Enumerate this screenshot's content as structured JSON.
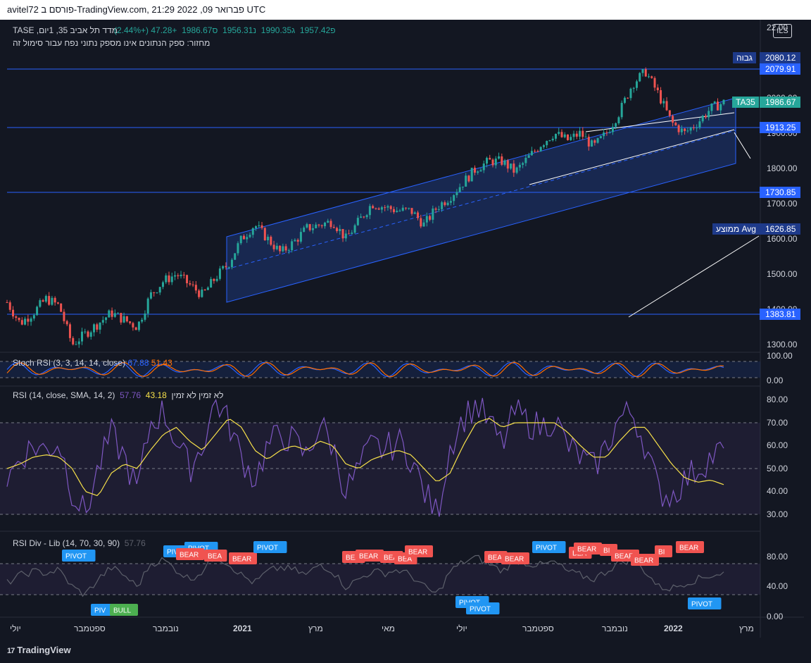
{
  "header": {
    "text": "avitel72 פורסם ב-TradingView.com, 21:29 2022 ,09 פברואר UTC"
  },
  "legend": {
    "symbol": "מדד תל אביב 35, 1יום, TASE",
    "o": "פ1957.42",
    "h": "ג1990.35",
    "l": "נ1956.31",
    "c": "ס1986.67",
    "change": "+47.28 (+2.44%)",
    "note": "מחזור: ספק הנתונים אינו מספק נתוני נפח עבור סימול זה"
  },
  "currency_button": "ILS",
  "price_axis": {
    "ticks": [
      "22.00",
      "2000.00",
      "1900.00",
      "1800.00",
      "1700.00",
      "1600.00",
      "1500.00",
      "1400.00",
      "1300.00"
    ],
    "tags": [
      {
        "name": "high-label",
        "side": "גבוה",
        "value": "2080.12"
      },
      {
        "name": "resistance-2",
        "value": "2079.91"
      },
      {
        "name": "last-price",
        "side": "TA35",
        "value": "1986.67"
      },
      {
        "name": "resistance-1",
        "value": "1913.25"
      },
      {
        "name": "support-1",
        "value": "1730.85"
      },
      {
        "name": "avg-label",
        "side": "ממוצע Avg",
        "value": "1626.85"
      },
      {
        "name": "support-2",
        "value": "1383.81"
      }
    ]
  },
  "stoch": {
    "title": "Stoch RSI (3, 3, 14, 14, close)",
    "k": "67.88",
    "d": "51.43",
    "ticks": [
      "100.00",
      "0.00"
    ]
  },
  "rsi": {
    "title": "RSI (14, close, SMA, 14, 2)",
    "v1": "57.76",
    "v2": "43.18",
    "note": "לא זמין  לא זמין",
    "ticks": [
      "80.00",
      "70.00",
      "60.00",
      "50.00",
      "40.00",
      "30.00"
    ]
  },
  "div": {
    "title": "RSI Div - Lib (14, 70, 30, 90)",
    "v": "57.76",
    "ticks": [
      "80.00",
      "40.00",
      "0.00"
    ]
  },
  "time_axis": [
    "יולי",
    "ספטמבר",
    "נובמבר",
    "2021",
    "מרץ",
    "מאי",
    "יולי",
    "ספטמבר",
    "נובמבר",
    "2022",
    "מרץ"
  ],
  "signals": {
    "pivot": "PIVOT",
    "bear": "BEAR",
    "bull": "BULL",
    "pivot_short": "PIV",
    "bear_short": "BEA",
    "b_short": "BI",
    "bull_short": "B"
  },
  "footer": {
    "brand": "TradingView"
  },
  "colors": {
    "up": "#26a69a",
    "down": "#ef5350",
    "channel": "#2962ff",
    "rsi": "#7e57c2",
    "rsi_ma": "#f7e14a",
    "pivot": "#2196f3",
    "bear": "#f05350",
    "bull": "#4caf50"
  },
  "chart_data": {
    "type": "candlestick",
    "x_range": [
      "2020-06",
      "2022-03"
    ],
    "y_range": [
      1270,
      2200
    ],
    "key_levels": [
      2079.91,
      1913.25,
      1730.85,
      1383.81
    ],
    "last": 1986.67,
    "high": 2080.12,
    "path_closes": [
      1420,
      1360,
      1390,
      1430,
      1410,
      1300,
      1330,
      1360,
      1390,
      1370,
      1350,
      1440,
      1480,
      1500,
      1470,
      1440,
      1490,
      1530,
      1600,
      1640,
      1600,
      1560,
      1590,
      1630,
      1640,
      1650,
      1600,
      1650,
      1700,
      1690,
      1680,
      1680,
      1640,
      1690,
      1720,
      1760,
      1800,
      1820,
      1820,
      1790,
      1830,
      1870,
      1900,
      1880,
      1900,
      1860,
      1900,
      1960,
      2040,
      2075,
      2010,
      1930,
      1900,
      1930,
      1970,
      1987
    ],
    "series": [
      {
        "name": "RSI",
        "values": [
          45,
          55,
          60,
          58,
          62,
          40,
          30,
          50,
          65,
          55,
          40,
          70,
          75,
          62,
          50,
          60,
          80,
          70,
          55,
          45,
          60,
          65,
          62,
          55,
          70,
          60,
          40,
          50,
          60,
          58,
          62,
          55,
          40,
          30,
          60,
          72,
          78,
          70,
          60,
          75,
          70,
          68,
          72,
          60,
          55,
          50,
          60,
          72,
          75,
          60,
          40,
          38,
          45,
          50,
          55,
          58
        ]
      },
      {
        "name": "RSI MA",
        "values": [
          50,
          52,
          55,
          56,
          55,
          50,
          40,
          38,
          48,
          52,
          50,
          58,
          65,
          68,
          62,
          58,
          65,
          72,
          68,
          58,
          54,
          58,
          60,
          58,
          62,
          60,
          52,
          50,
          54,
          56,
          58,
          56,
          50,
          44,
          48,
          60,
          70,
          72,
          68,
          70,
          70,
          70,
          70,
          66,
          60,
          55,
          55,
          62,
          68,
          68,
          60,
          52,
          46,
          44,
          45,
          43
        ]
      }
    ]
  }
}
